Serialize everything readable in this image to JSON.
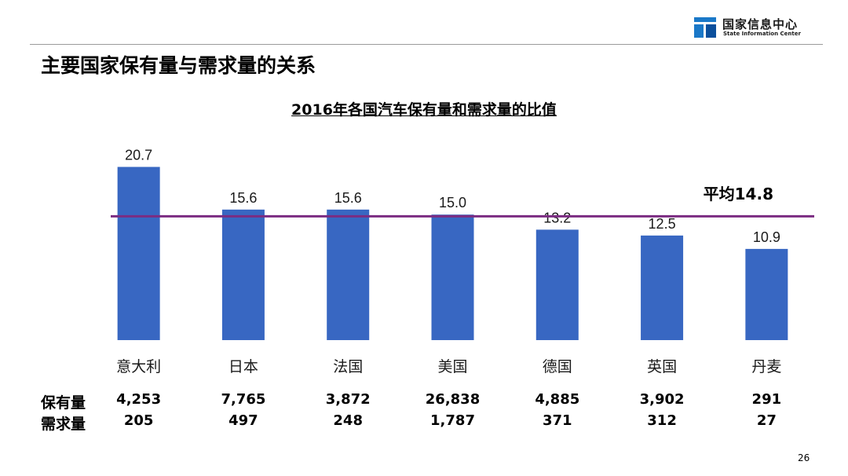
{
  "header": {
    "logo_cn": "国家信息中心",
    "logo_en": "State Information Center"
  },
  "page_title": "主要国家保有量与需求量的关系",
  "page_number": "26",
  "chart_data": {
    "type": "bar",
    "title": "2016年各国汽车保有量和需求量的比值",
    "categories": [
      "意大利",
      "日本",
      "法国",
      "美国",
      "德国",
      "英国",
      "丹麦"
    ],
    "values": [
      20.7,
      15.6,
      15.6,
      15.0,
      13.2,
      12.5,
      10.9
    ],
    "value_labels": [
      "20.7",
      "15.6",
      "15.6",
      "15.0",
      "13.2",
      "12.5",
      "10.9"
    ],
    "ylim": [
      0,
      23
    ],
    "grid": false,
    "bar_color": "#3867c2",
    "reference_line": {
      "label": "平均14.8",
      "value": 14.8,
      "color": "#7b2c82"
    }
  },
  "table": {
    "rows": [
      {
        "label": "保有量",
        "values": [
          "4,253",
          "7,765",
          "3,872",
          "26,838",
          "4,885",
          "3,902",
          "291"
        ]
      },
      {
        "label": "需求量",
        "values": [
          "205",
          "497",
          "248",
          "1,787",
          "371",
          "312",
          "27"
        ]
      }
    ]
  }
}
